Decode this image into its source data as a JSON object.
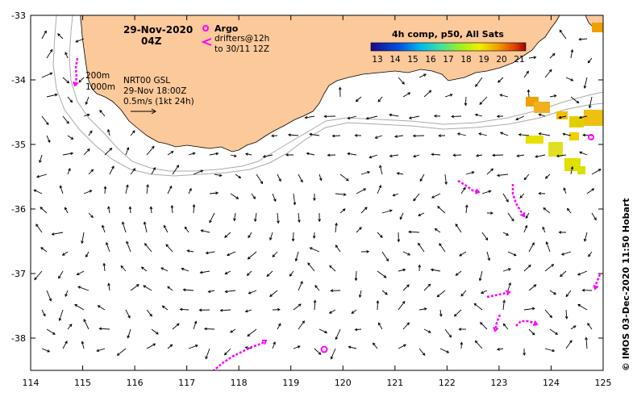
{
  "header": {
    "date": "29-Nov-2020",
    "time": "04Z"
  },
  "legend": {
    "argo_label": "Argo",
    "drifters_line1": "drifters@12h",
    "drifters_line2": "to 30/11 12Z",
    "sst_title": "4h comp, p50, All Sats",
    "sst_ticks": [
      "13",
      "14",
      "15",
      "16",
      "17",
      "18",
      "19",
      "20",
      "21"
    ]
  },
  "info": {
    "isobath1": "200m",
    "isobath2": "1000m",
    "product": "NRT00 GSL",
    "valid": "29-Nov 18:00Z",
    "scale": "0.5m/s (1kt 24h)"
  },
  "axes": {
    "x_ticks": [
      "114",
      "115",
      "116",
      "117",
      "118",
      "119",
      "120",
      "121",
      "122",
      "123",
      "124",
      "125"
    ],
    "y_ticks": [
      "-33",
      "-34",
      "-35",
      "-36",
      "-37",
      "-38"
    ]
  },
  "credit": "© IMOS 03-Dec-2020 11:50 Hobart",
  "colors": {
    "land": "#fcc99a",
    "drifter": "#ff00ff",
    "vector": "#000000",
    "isobath": "#aaaaaa"
  }
}
